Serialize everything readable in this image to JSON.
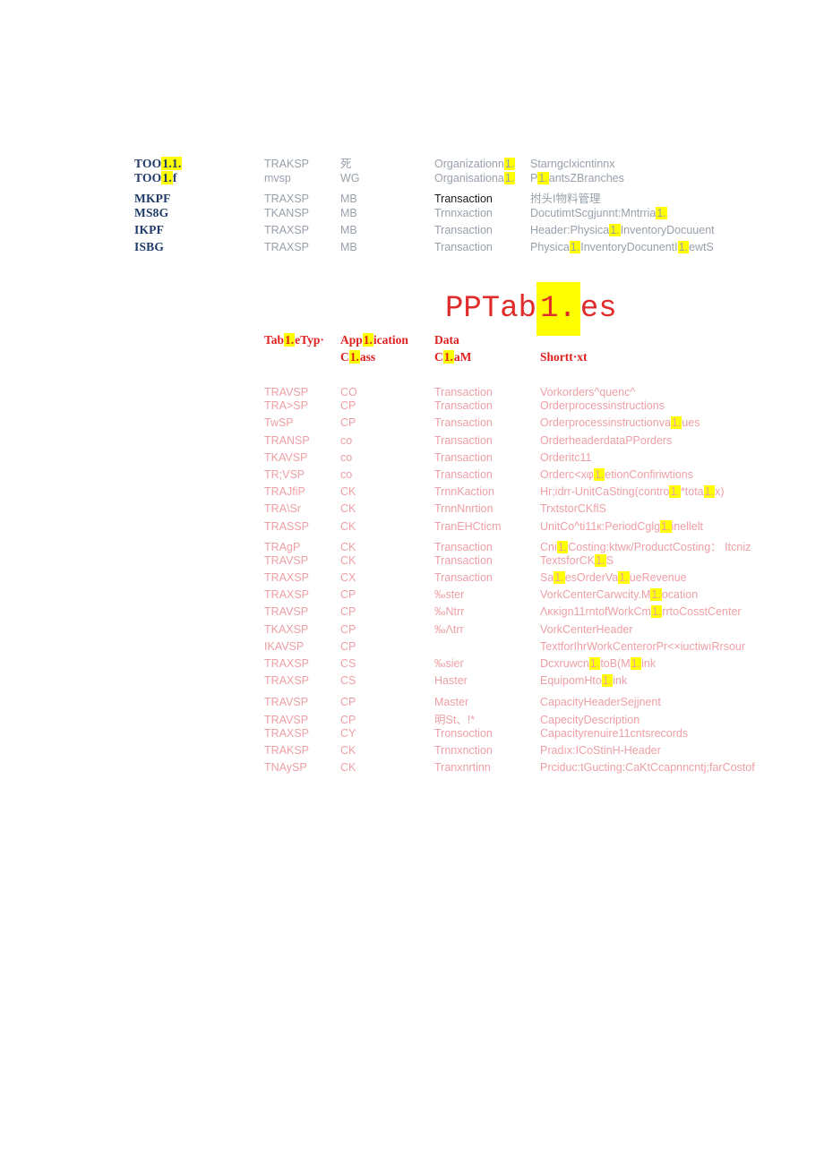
{
  "title": "PPTab[[1.]]es",
  "accent_colors": {
    "highlight": "#ffff00",
    "title_red": "#e02b2b",
    "header_red": "#e01f1f",
    "body_pink": "#ee9fa5",
    "code_navy": "#1f3a68",
    "body_gray": "#98a0ab"
  },
  "top_table": {
    "rows": [
      {
        "code": "TOO[[1.1.]]",
        "type": "TRAKSP",
        "area": "死",
        "kind": "Organizationn[[1.]]",
        "text": "Starngclxicntinnx"
      },
      {
        "code": "TOO[[1.]]f",
        "type": "mvsp",
        "area": "WG",
        "kind": "Organisationa[[1.]]",
        "text": "P[[1.]]antsZBranches"
      },
      {
        "code": "MKPF",
        "type": "TRAXSP",
        "area": "MB",
        "kind": "Transaction",
        "kind_black": true,
        "text": "拊头I物料管理"
      },
      {
        "code": "MS8G",
        "type": "TKANSP",
        "area": "MB",
        "kind": "Trnnxaction",
        "text": "DocutimtScgjunnt:Mntrria[[1.]]"
      },
      {
        "code": "IKPF",
        "type": "TRAXSP",
        "area": "MB",
        "kind": "Transaction",
        "text": "Header:Physica[[1.]]InventoryDocuuent"
      },
      {
        "code": "ISBG",
        "type": "TRAXSP",
        "area": "MB",
        "kind": "Transaction",
        "text": "Physica[[1.]]InventoryDocunentI[[1.]]ewtS"
      }
    ]
  },
  "main_table": {
    "header": {
      "col1_line1": "Tab[[1.]]eTyp·",
      "col2_line1": "App[[1.]]ication",
      "col2_line2": "C[[1.]]ass",
      "col3_line1": "Data",
      "col3_line2": "C[[1.]]aM",
      "col4_line2": "Shortt·xt"
    },
    "rows": [
      {
        "type": "TRAVSP",
        "app": "CO",
        "dc": "Transaction",
        "text": "Vorkorders^quenc^",
        "h": 15
      },
      {
        "type": "TRA>SP",
        "app": "CP",
        "dc": "Transaction",
        "text": "Orderprocessinstructions"
      },
      {
        "type": "TwSP",
        "app": "CP",
        "dc": "Transaction",
        "text": "Orderprocessinstructionva[[1.]]ues"
      },
      {
        "type": "TRANSP",
        "app": "co",
        "dc": "Transaction",
        "text": "OrderheaderdataPPorders"
      },
      {
        "type": "TKAVSP",
        "app": "co",
        "dc": "Transaction",
        "text": "Orderitc11"
      },
      {
        "type": "TR;VSP",
        "app": "co",
        "dc": "Transaction",
        "text": "Orderc<xφ[[1.]]etionConfiriwtions"
      },
      {
        "type": "TRAJfiP",
        "app": "CK",
        "dc": "TrnnKaction",
        "text": "Hr;idrr-UnitCaSting(contro[[1.]]*tota[[1.]]x)"
      },
      {
        "type": "TRA\\Sr",
        "app": "CK",
        "dc": "TrnnNnrtion",
        "text": "TrxtstorCKflS"
      },
      {
        "type": "TRASSP",
        "app": "CK",
        "dc": "TranEHCticm",
        "text": "UnitCo^ti11к:PeriodCglg[[1.]]inellelt"
      },
      {
        "type": "TRAgP",
        "app": "CK",
        "dc": "Transaction",
        "text": "Cni[[1.]]Costing:ktwк/ProductCosting： Itcniz"
      },
      {
        "type": "TRAVSP",
        "app": "CK",
        "dc": "Transaction",
        "text": "TextsforCK[[1.]]S"
      },
      {
        "type": "TRAXSP",
        "app": "CX",
        "dc": "Transaction",
        "text": "Sa[[1.]]esOrderVa[[1.]]ueRevenue"
      },
      {
        "type": "TRAXSP",
        "app": "CP",
        "dc": "‰ster",
        "text": "VorkCenterCarwcity.M[[1.]]ocation"
      },
      {
        "type": "TRAVSP",
        "app": "CP",
        "dc": "‰Ntrr",
        "text": "Λκκign11rntofWorkCm[[1.]]rrtoCosstCenter"
      },
      {
        "type": "TKAXSP",
        "app": "CP",
        "dc": "‰Λtrr",
        "text": "VorkCenterHeader"
      },
      {
        "type": "IKAVSP",
        "app": "CP",
        "dc": "",
        "text": "TextforIhrWorkCenterorPr<×iuctiwıRrsour"
      },
      {
        "type": "TRAXSP",
        "app": "CS",
        "dc": "‰sier",
        "text": "Dcxruwcn[[1.]]toB(M[[1.]]ink"
      },
      {
        "type": "TRAXSP",
        "app": "CS",
        "dc": "Haster",
        "text": "EquipomHto[[1.]]ink",
        "h": 24
      },
      {
        "type": "TRAVSP",
        "app": "CP",
        "dc": "Master",
        "text": "CapacityHeaderSejjnent",
        "h": 15
      },
      {
        "type": "TRAVSP",
        "app": "CP",
        "dc": "明St、!*",
        "text": "CapecityDescription"
      },
      {
        "type": "TRAXSP",
        "app": "CY",
        "dc": "Tronsoction",
        "text": "Capacityrenuire11cntsrecords"
      },
      {
        "type": "TRAKSP",
        "app": "CK",
        "dc": "Trnnxnction",
        "text": "Pradıx:ICoStinH-Header"
      },
      {
        "type": "TNAySP",
        "app": "CK",
        "dc": "Tranxnrtinn",
        "text": "Prciduc:tGucting:CaKtCcapnncntj;farCostof"
      }
    ]
  }
}
